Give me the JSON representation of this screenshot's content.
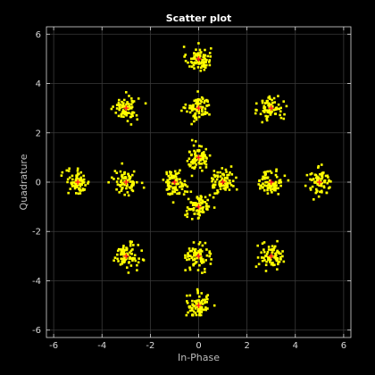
{
  "chart_data": {
    "type": "scatter",
    "title": "Scatter plot",
    "xlabel": "In-Phase",
    "ylabel": "Quadrature",
    "xlim": [
      -6.3,
      6.3
    ],
    "ylim": [
      -6.3,
      6.3
    ],
    "xticks": [
      -6,
      -4,
      -2,
      0,
      2,
      4,
      6
    ],
    "yticks": [
      -6,
      -4,
      -2,
      0,
      2,
      4,
      6
    ],
    "grid": true,
    "colors": {
      "background": "#000000",
      "axis": "#d8d8d8",
      "grid": "#3a3a3a",
      "received": "#ffff00",
      "reference": "#ff2020"
    },
    "constellation": [
      {
        "x": 0,
        "y": 5
      },
      {
        "x": -3,
        "y": 3
      },
      {
        "x": 0,
        "y": 3
      },
      {
        "x": 3,
        "y": 3
      },
      {
        "x": 0,
        "y": 1
      },
      {
        "x": -5,
        "y": 0
      },
      {
        "x": -3,
        "y": 0
      },
      {
        "x": -1,
        "y": 0
      },
      {
        "x": 1,
        "y": 0
      },
      {
        "x": 3,
        "y": 0
      },
      {
        "x": 5,
        "y": 0
      },
      {
        "x": 0,
        "y": -1
      },
      {
        "x": -3,
        "y": -3
      },
      {
        "x": 0,
        "y": -3
      },
      {
        "x": 3,
        "y": -3
      },
      {
        "x": 0,
        "y": -5
      }
    ],
    "cluster_spread": 0.25,
    "points_per_cluster": 80
  }
}
